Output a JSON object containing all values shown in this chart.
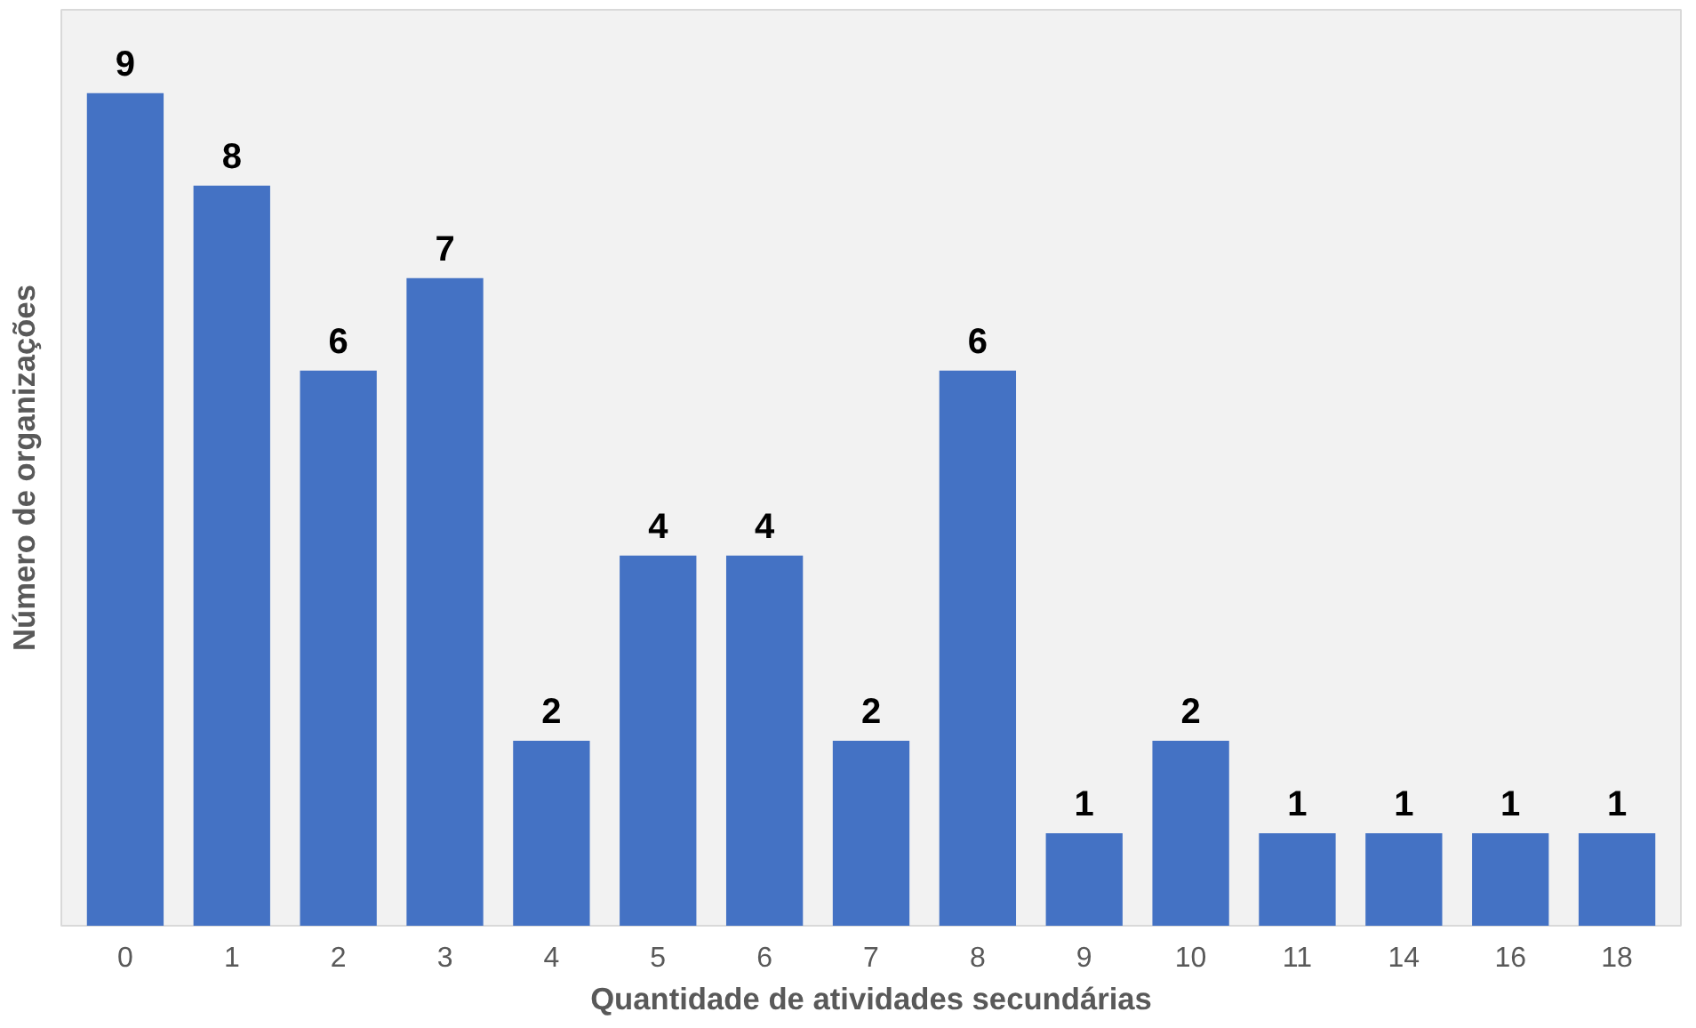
{
  "chart_data": {
    "type": "bar",
    "xlabel": "Quantidade de atividades secundárias",
    "ylabel": "Número de organizações",
    "categories": [
      "0",
      "1",
      "2",
      "3",
      "4",
      "5",
      "6",
      "7",
      "8",
      "9",
      "10",
      "11",
      "14",
      "16",
      "18"
    ],
    "values": [
      9,
      8,
      6,
      7,
      2,
      4,
      4,
      2,
      6,
      1,
      2,
      1,
      1,
      1,
      1
    ],
    "color": "#4472c4",
    "data_labels": true,
    "grid": false
  }
}
